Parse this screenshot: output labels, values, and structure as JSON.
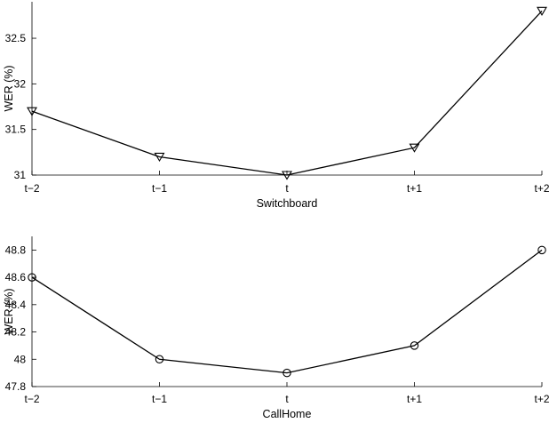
{
  "chart_data": [
    {
      "type": "line",
      "title": "",
      "xlabel": "Switchboard",
      "ylabel": "WER (%)",
      "categories": [
        "t−2",
        "t−1",
        "t",
        "t+1",
        "t+2"
      ],
      "series": [
        {
          "values": [
            31.7,
            31.2,
            31.0,
            31.3,
            32.8
          ],
          "marker": "triangle-down"
        }
      ],
      "ylim": [
        31,
        32.9
      ],
      "yticks": [
        31,
        31.5,
        32,
        32.5
      ],
      "ytick_labels": [
        "31",
        "31.5",
        "32",
        "32.5"
      ],
      "grid": false,
      "color": "#000000"
    },
    {
      "type": "line",
      "title": "",
      "xlabel": "CallHome",
      "ylabel": "WER (%)",
      "categories": [
        "t−2",
        "t−1",
        "t",
        "t+1",
        "t+2"
      ],
      "series": [
        {
          "values": [
            48.6,
            48.0,
            47.9,
            48.1,
            48.8
          ],
          "marker": "circle"
        }
      ],
      "ylim": [
        47.8,
        48.9
      ],
      "yticks": [
        47.8,
        48.0,
        48.2,
        48.4,
        48.6,
        48.8
      ],
      "ytick_labels": [
        "47.8",
        "48",
        "48.2",
        "48.4",
        "48.6",
        "48.8"
      ],
      "grid": false,
      "color": "#000000"
    }
  ]
}
